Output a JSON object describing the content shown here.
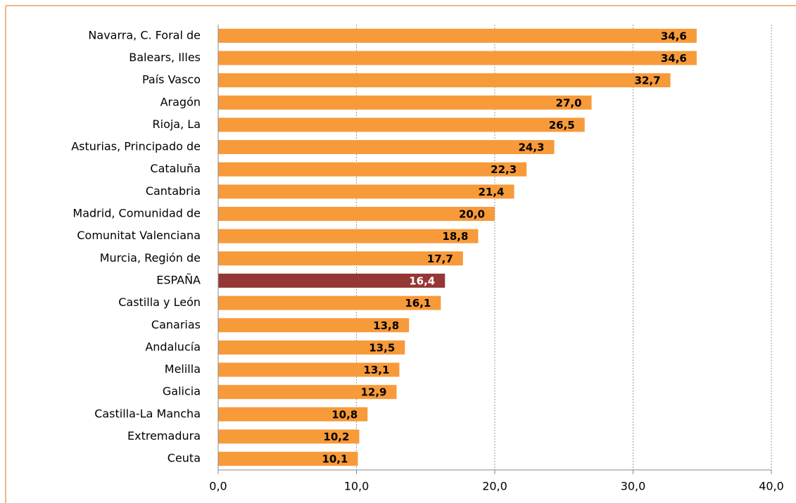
{
  "chart_data": {
    "type": "bar",
    "orientation": "horizontal",
    "categories": [
      "Navarra, C. Foral de",
      "Balears, Illes",
      "País Vasco",
      "Aragón",
      "Rioja, La",
      "Asturias, Principado de",
      "Cataluña",
      "Cantabria",
      "Madrid, Comunidad de",
      "Comunitat Valenciana",
      "Murcia, Región de",
      "ESPAÑA",
      "Castilla y León",
      "Canarias",
      "Andalucía",
      "Melilla",
      "Galicia",
      "Castilla-La Mancha",
      "Extremadura",
      "Ceuta"
    ],
    "values": [
      34.6,
      34.6,
      32.7,
      27.0,
      26.5,
      24.3,
      22.3,
      21.4,
      20.0,
      18.8,
      17.7,
      16.4,
      16.1,
      13.8,
      13.5,
      13.1,
      12.9,
      10.8,
      10.2,
      10.1
    ],
    "value_labels": [
      "34,6",
      "34,6",
      "32,7",
      "27,0",
      "26,5",
      "24,3",
      "22,3",
      "21,4",
      "20,0",
      "18,8",
      "17,7",
      "16,4",
      "16,1",
      "13,8",
      "13,5",
      "13,1",
      "12,9",
      "10,8",
      "10,2",
      "10,1"
    ],
    "colors": [
      "#f79a3a",
      "#f79a3a",
      "#f79a3a",
      "#f79a3a",
      "#f79a3a",
      "#f79a3a",
      "#f79a3a",
      "#f79a3a",
      "#f79a3a",
      "#f79a3a",
      "#f79a3a",
      "#953735",
      "#f79a3a",
      "#f79a3a",
      "#f79a3a",
      "#f79a3a",
      "#f79a3a",
      "#f79a3a",
      "#f79a3a",
      "#f79a3a"
    ],
    "xlim": [
      0,
      40
    ],
    "xticks": [
      {
        "value": 0,
        "label": "0,0"
      },
      {
        "value": 10,
        "label": "10,0"
      },
      {
        "value": 20,
        "label": "20,0"
      },
      {
        "value": 30,
        "label": "30,0"
      },
      {
        "value": 40,
        "label": "40,0"
      }
    ],
    "grid": true
  }
}
